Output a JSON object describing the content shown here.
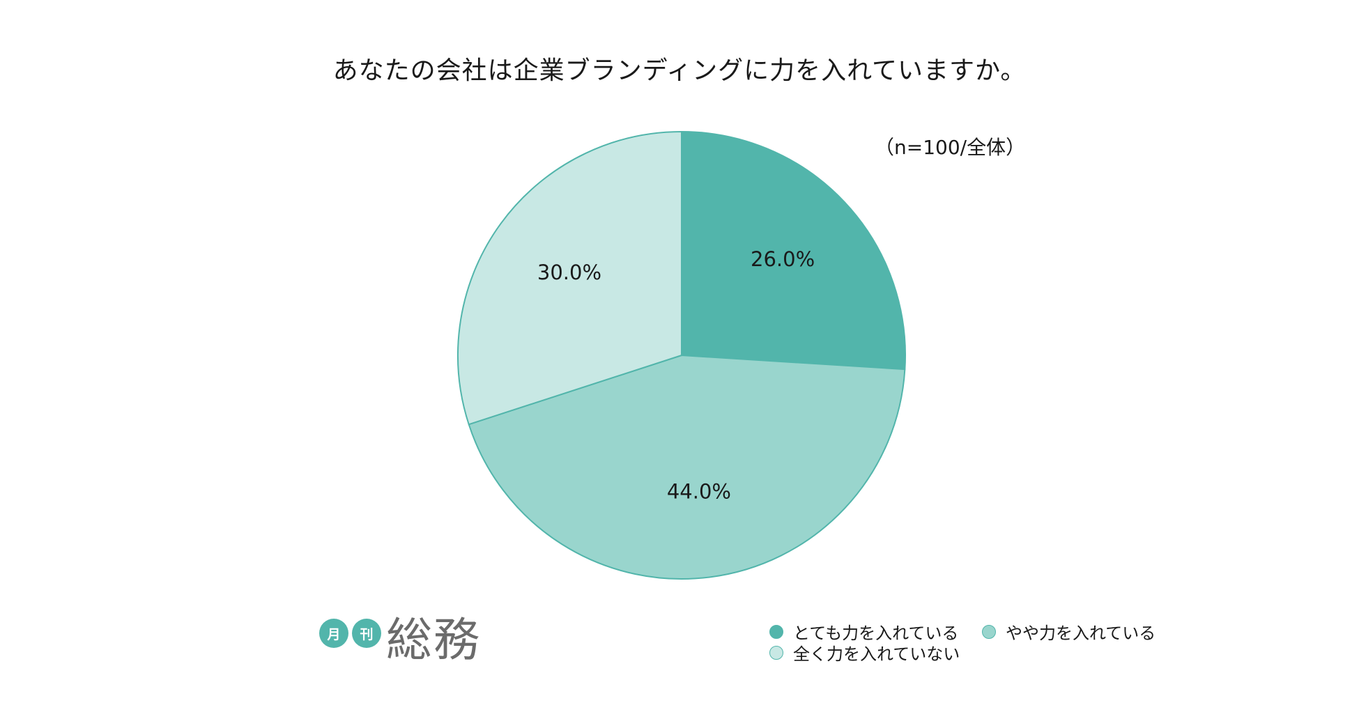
{
  "chart_data": {
    "type": "pie",
    "title": "あなたの会社は企業ブランディングに力を入れていますか。",
    "subtitle": "（n=100/全体）",
    "categories": [
      "とても力を入れている",
      "やや力を入れている",
      "全く力を入れていない"
    ],
    "values": [
      26.0,
      44.0,
      30.0
    ],
    "data_labels": [
      "26.0%",
      "44.0%",
      "30.0%"
    ],
    "colors": [
      "#52b5ab",
      "#99d5cd",
      "#c8e8e4"
    ],
    "start_angle_deg": 0,
    "direction": "clockwise",
    "legend": "bottom-right"
  },
  "branding": {
    "badge_1": "月",
    "badge_2": "刊",
    "name": "総務",
    "badge_color": "#52b5ab",
    "name_color": "#6b6b6b"
  },
  "colors": {
    "slice_border": "#52b5ab",
    "text": "#1a1a1a",
    "background": "#ffffff"
  }
}
